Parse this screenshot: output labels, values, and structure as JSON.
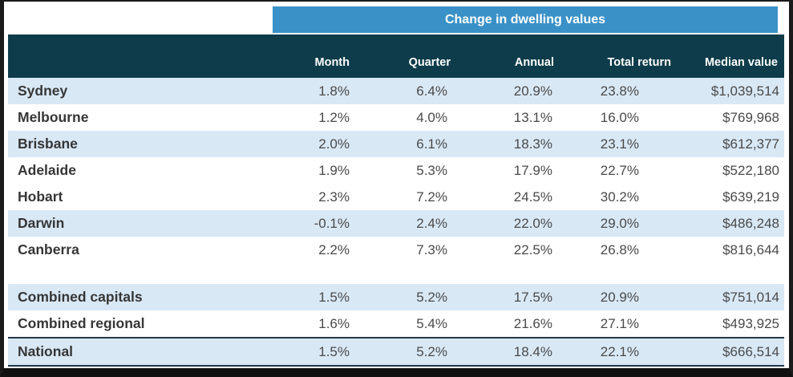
{
  "banner": {
    "title": "Change in dwelling values"
  },
  "table": {
    "columns": [
      "Month",
      "Quarter",
      "Annual",
      "Total return",
      "Median value"
    ],
    "rows": [
      {
        "name": "Sydney",
        "month": "1.8%",
        "quarter": "6.4%",
        "annual": "20.9%",
        "total_return": "23.8%",
        "median_value": "$1,039,514"
      },
      {
        "name": "Melbourne",
        "month": "1.2%",
        "quarter": "4.0%",
        "annual": "13.1%",
        "total_return": "16.0%",
        "median_value": "$769,968"
      },
      {
        "name": "Brisbane",
        "month": "2.0%",
        "quarter": "6.1%",
        "annual": "18.3%",
        "total_return": "23.1%",
        "median_value": "$612,377"
      },
      {
        "name": "Adelaide",
        "month": "1.9%",
        "quarter": "5.3%",
        "annual": "17.9%",
        "total_return": "22.7%",
        "median_value": "$522,180"
      },
      {
        "name": "Hobart",
        "month": "2.3%",
        "quarter": "7.2%",
        "annual": "24.5%",
        "total_return": "30.2%",
        "median_value": "$639,219"
      },
      {
        "name": "Darwin",
        "month": "-0.1%",
        "quarter": "2.4%",
        "annual": "22.0%",
        "total_return": "29.0%",
        "median_value": "$486,248"
      },
      {
        "name": "Canberra",
        "month": "2.2%",
        "quarter": "7.3%",
        "annual": "22.5%",
        "total_return": "26.8%",
        "median_value": "$816,644"
      },
      {
        "name": "Combined capitals",
        "month": "1.5%",
        "quarter": "5.2%",
        "annual": "17.5%",
        "total_return": "20.9%",
        "median_value": "$751,014"
      },
      {
        "name": "Combined regional",
        "month": "1.6%",
        "quarter": "5.4%",
        "annual": "21.6%",
        "total_return": "27.1%",
        "median_value": "$493,925"
      },
      {
        "name": "National",
        "month": "1.5%",
        "quarter": "5.2%",
        "annual": "18.4%",
        "total_return": "22.1%",
        "median_value": "$666,514"
      }
    ]
  },
  "colors": {
    "banner_blue": "#3A91C8",
    "header_teal": "#0E3C4A",
    "row_stripe": "#D9E8F5",
    "frame": "#1B1B1B",
    "national_border": "#233649"
  },
  "chart_data": {
    "type": "table",
    "title": "Change in dwelling values",
    "categories": [
      "Sydney",
      "Melbourne",
      "Brisbane",
      "Adelaide",
      "Hobart",
      "Darwin",
      "Canberra",
      "Combined capitals",
      "Combined regional",
      "National"
    ],
    "series": [
      {
        "name": "Month (%)",
        "values": [
          1.8,
          1.2,
          2.0,
          1.9,
          2.3,
          -0.1,
          2.2,
          1.5,
          1.6,
          1.5
        ]
      },
      {
        "name": "Quarter (%)",
        "values": [
          6.4,
          4.0,
          6.1,
          5.3,
          7.2,
          2.4,
          7.3,
          5.2,
          5.4,
          5.2
        ]
      },
      {
        "name": "Annual (%)",
        "values": [
          20.9,
          13.1,
          18.3,
          17.9,
          24.5,
          22.0,
          22.5,
          17.5,
          21.6,
          18.4
        ]
      },
      {
        "name": "Total return (%)",
        "values": [
          23.8,
          16.0,
          23.1,
          22.7,
          30.2,
          29.0,
          26.8,
          20.9,
          27.1,
          22.1
        ]
      },
      {
        "name": "Median value ($)",
        "values": [
          1039514,
          769968,
          612377,
          522180,
          639219,
          486248,
          816644,
          751014,
          493925,
          666514
        ]
      }
    ]
  }
}
